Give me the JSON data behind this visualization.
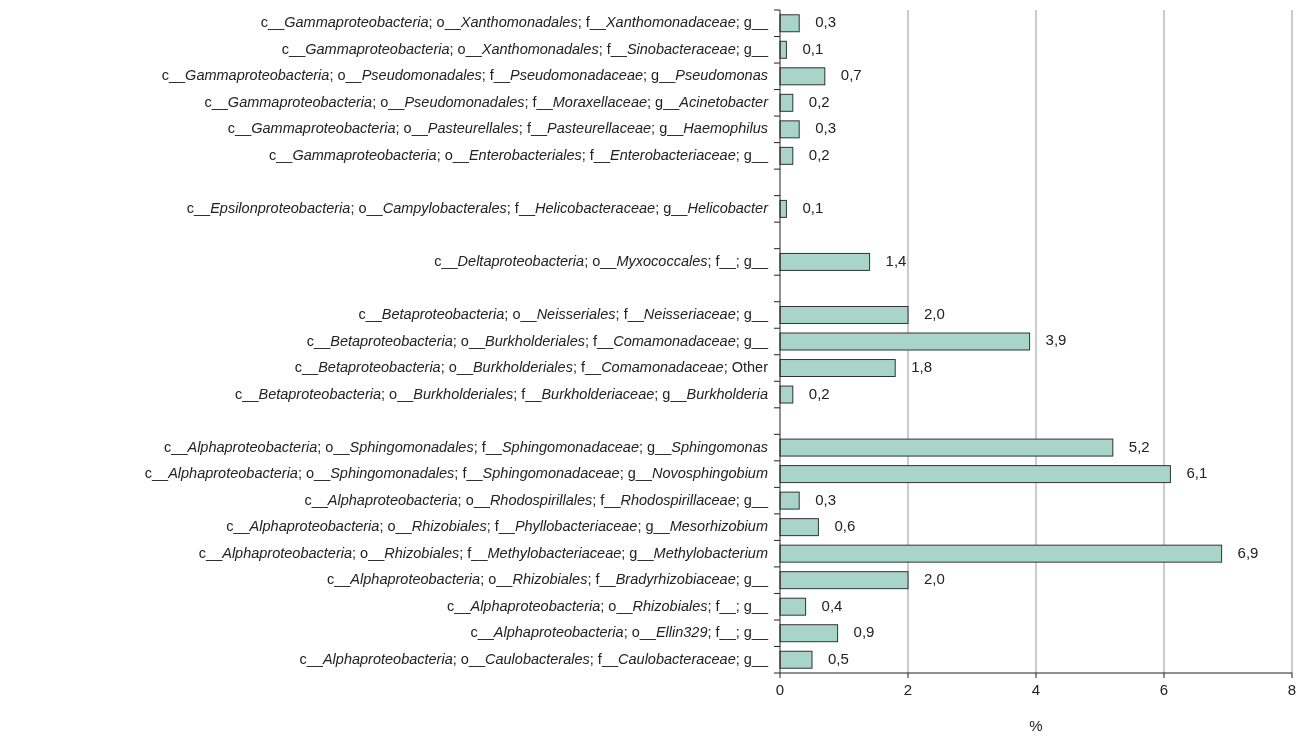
{
  "chart_data": {
    "type": "bar",
    "orientation": "horizontal",
    "xlabel": "%",
    "categories": [
      "c__Gammaproteobacteria; o__Xanthomonadales; f__Xanthomonadaceae; g__",
      "c__Gammaproteobacteria; o__Xanthomonadales; f__Sinobacteraceae; g__",
      "c__Gammaproteobacteria; o__Pseudomonadales; f__Pseudomonadaceae; g__Pseudomonas",
      "c__Gammaproteobacteria; o__Pseudomonadales; f__Moraxellaceae; g__Acinetobacter",
      "c__Gammaproteobacteria; o__Pasteurellales; f__Pasteurellaceae; g__Haemophilus",
      "c__Gammaproteobacteria; o__Enterobacteriales; f__Enterobacteriaceae; g__",
      null,
      "c__Epsilonproteobacteria; o__Campylobacterales; f__Helicobacteraceae; g__Helicobacter",
      null,
      "c__Deltaproteobacteria; o__Myxococcales; f__; g__",
      null,
      "c__Betaproteobacteria; o__Neisseriales; f__Neisseriaceae; g__",
      "c__Betaproteobacteria; o__Burkholderiales; f__Comamonadaceae; g__",
      "c__Betaproteobacteria; o__Burkholderiales; f__Comamonadaceae; Other",
      "c__Betaproteobacteria; o__Burkholderiales; f__Burkholderiaceae; g__Burkholderia",
      null,
      "c__Alphaproteobacteria; o__Sphingomonadales; f__Sphingomonadaceae; g__Sphingomonas",
      "c__Alphaproteobacteria; o__Sphingomonadales; f__Sphingomonadaceae; g__Novosphingobium",
      "c__Alphaproteobacteria; o__Rhodospirillales; f__Rhodospirillaceae; g__",
      "c__Alphaproteobacteria; o__Rhizobiales; f__Phyllobacteriaceae; g__Mesorhizobium",
      "c__Alphaproteobacteria; o__Rhizobiales; f__Methylobacteriaceae; g__Methylobacterium",
      "c__Alphaproteobacteria; o__Rhizobiales; f__Bradyrhizobiaceae; g__",
      "c__Alphaproteobacteria; o__Rhizobiales; f__; g__",
      "c__Alphaproteobacteria; o__Ellin329; f__; g__",
      "c__Alphaproteobacteria; o__Caulobacterales; f__Caulobacteraceae; g__"
    ],
    "values": [
      0.3,
      0.1,
      0.7,
      0.2,
      0.3,
      0.2,
      null,
      0.1,
      null,
      1.4,
      null,
      2.0,
      3.9,
      1.8,
      0.2,
      null,
      5.2,
      6.1,
      0.3,
      0.6,
      6.9,
      2.0,
      0.4,
      0.9,
      0.5
    ],
    "value_labels": [
      "0,3",
      "0,1",
      "0,7",
      "0,2",
      "0,3",
      "0,2",
      null,
      "0,1",
      null,
      "1,4",
      null,
      "2,0",
      "3,9",
      "1,8",
      "0,2",
      null,
      "5,2",
      "6,1",
      "0,3",
      "0,6",
      "6,9",
      "2,0",
      "0,4",
      "0,9",
      "0,5"
    ],
    "color": "#a8d5c8",
    "xlim": [
      0,
      8
    ],
    "xticks": [
      0,
      2,
      4,
      6,
      8
    ],
    "grid": "x"
  }
}
